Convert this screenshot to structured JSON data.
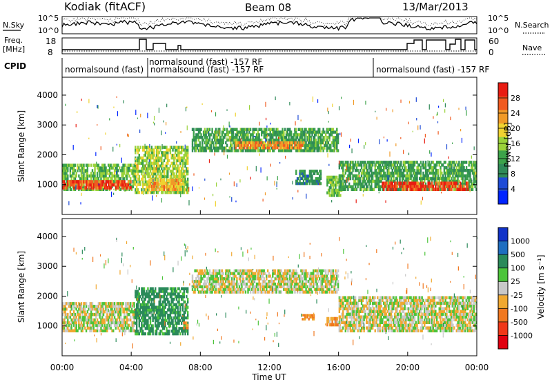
{
  "header": {
    "station": "Kodiak (fitACF)",
    "beam": "Beam 08",
    "date": "13/Mar/2013"
  },
  "summary_panel": {
    "nsky": {
      "label": "N.Sky",
      "ticks": [
        "10^5",
        "10^0"
      ]
    },
    "nsearch": {
      "label": "N.Search",
      "ticks": [
        "10^5",
        "10^0"
      ]
    },
    "freq": {
      "label_line1": "Freq.",
      "label_line2": "[MHz]",
      "ticks": [
        "18",
        "8"
      ]
    },
    "nave": {
      "label": "Nave",
      "ticks": [
        "60",
        "0"
      ]
    },
    "cpid": {
      "label": "CPID",
      "programs": [
        {
          "start_hr": 0.0,
          "text": "normalsound (fast)"
        },
        {
          "start_hr": 4.75,
          "text": "normalsound (fast) -157 RF"
        },
        {
          "start_hr": 5.2,
          "text": "normalsound (fast) -157 RF"
        },
        {
          "start_hr": 18.0,
          "text": "normalsound (fast) -157 RF"
        }
      ]
    }
  },
  "axes": {
    "x_label": "Time UT",
    "x_ticks": [
      "00:00",
      "04:00",
      "08:00",
      "12:00",
      "16:00",
      "20:00",
      "00:00"
    ],
    "y_label": "Slant Range [km]",
    "y_ticks": [
      "1000",
      "2000",
      "3000",
      "4000"
    ]
  },
  "colorbars": {
    "power": {
      "title": "Power [dB]",
      "ticks": [
        "4",
        "8",
        "12",
        "16",
        "20",
        "24",
        "28"
      ],
      "colors": [
        "#0024ff",
        "#1e4bd6",
        "#2f8a58",
        "#3ca34a",
        "#9ad23a",
        "#f0d230",
        "#f09a28",
        "#f05a20",
        "#e81c12"
      ]
    },
    "velocity": {
      "title": "Velocity [m s⁻¹]",
      "ticks": [
        "1000",
        "500",
        "100",
        "25",
        "-25",
        "-100",
        "-500",
        "-1000"
      ],
      "colors": [
        "#1032c8",
        "#1f6ec0",
        "#2a8a5a",
        "#4cc43a",
        "#c8c8c8",
        "#f0a830",
        "#f07820",
        "#f03818",
        "#e00010"
      ]
    }
  },
  "chart_data": [
    {
      "type": "heatmap",
      "title": "Power [dB]",
      "xlabel": "Time UT",
      "ylabel": "Slant Range [km]",
      "xlim": [
        0,
        24
      ],
      "ylim": [
        0,
        4600
      ],
      "colorbar_range": [
        0,
        32
      ],
      "bands": [
        {
          "t0": 0.0,
          "t1": 4.2,
          "r0": 800,
          "r1": 1700,
          "power": 14
        },
        {
          "t0": 0.0,
          "t1": 4.0,
          "r0": 850,
          "r1": 1150,
          "power": 28
        },
        {
          "t0": 4.2,
          "t1": 7.3,
          "r0": 700,
          "r1": 2300,
          "power": 16
        },
        {
          "t0": 5.0,
          "t1": 7.0,
          "r0": 800,
          "r1": 1200,
          "power": 22
        },
        {
          "t0": 7.5,
          "t1": 16.0,
          "r0": 2100,
          "r1": 2900,
          "power": 12
        },
        {
          "t0": 10.0,
          "t1": 14.0,
          "r0": 2200,
          "r1": 2450,
          "power": 24
        },
        {
          "t0": 13.5,
          "t1": 15.0,
          "r0": 1000,
          "r1": 1500,
          "power": 10
        },
        {
          "t0": 15.3,
          "t1": 16.2,
          "r0": 600,
          "r1": 1300,
          "power": 14
        },
        {
          "t0": 16.0,
          "t1": 24.0,
          "r0": 800,
          "r1": 1800,
          "power": 12
        },
        {
          "t0": 18.5,
          "t1": 23.5,
          "r0": 800,
          "r1": 1100,
          "power": 28
        }
      ]
    },
    {
      "type": "heatmap",
      "title": "Velocity [m s⁻¹]",
      "xlabel": "Time UT",
      "ylabel": "Slant Range [km]",
      "xlim": [
        0,
        24
      ],
      "ylim": [
        0,
        4600
      ],
      "colorbar_range": [
        -1000,
        1000
      ],
      "bands": [
        {
          "t0": 0.0,
          "t1": 4.2,
          "r0": 800,
          "r1": 1800,
          "velocity": 0
        },
        {
          "t0": 4.2,
          "t1": 7.3,
          "r0": 700,
          "r1": 2300,
          "velocity": 150
        },
        {
          "t0": 7.0,
          "t1": 7.3,
          "r0": 900,
          "r1": 1150,
          "velocity": -100
        },
        {
          "t0": 7.5,
          "t1": 16.0,
          "r0": 2100,
          "r1": 2900,
          "velocity": 0
        },
        {
          "t0": 13.8,
          "t1": 14.6,
          "r0": 1200,
          "r1": 1400,
          "velocity": -100
        },
        {
          "t0": 15.3,
          "t1": 16.1,
          "r0": 1000,
          "r1": 1300,
          "velocity": -100
        },
        {
          "t0": 16.0,
          "t1": 24.0,
          "r0": 800,
          "r1": 2000,
          "velocity": 0
        }
      ]
    }
  ]
}
